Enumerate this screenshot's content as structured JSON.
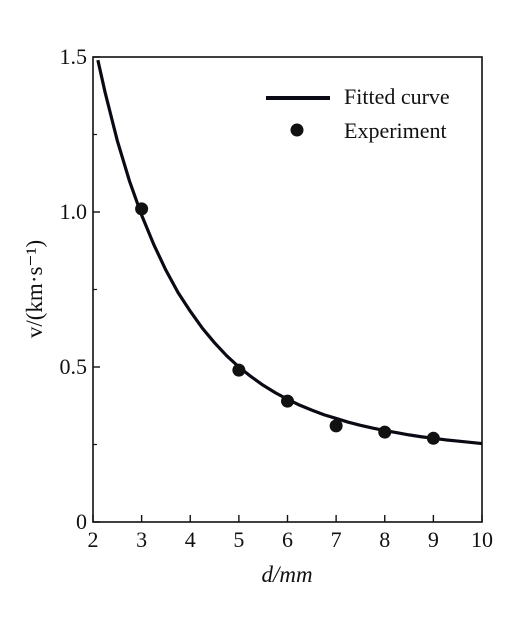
{
  "chart_data": {
    "type": "scatter",
    "xlabel": "d/mm",
    "ylabel": "v/(km·s⁻¹)",
    "xlim": [
      2,
      10
    ],
    "ylim": [
      0,
      1.5
    ],
    "x_ticks": [
      2,
      3,
      4,
      5,
      6,
      7,
      8,
      9,
      10
    ],
    "y_ticks": [
      0,
      0.5,
      1.0,
      1.5
    ],
    "x_tick_labels": [
      "2",
      "3",
      "4",
      "5",
      "6",
      "7",
      "8",
      "9",
      "10"
    ],
    "y_tick_labels": [
      "0",
      "0.5",
      "1.0",
      "1.5"
    ],
    "grid": false,
    "legend_position": "top-right",
    "series": [
      {
        "name": "Fitted curve",
        "type": "line",
        "color": "#0a0a14",
        "x": [
          2.1,
          2.25,
          2.5,
          2.75,
          3.0,
          3.25,
          3.5,
          3.75,
          4.0,
          4.25,
          4.5,
          4.75,
          5.0,
          5.25,
          5.5,
          5.75,
          6.0,
          6.25,
          6.5,
          6.75,
          7.0,
          7.25,
          7.5,
          7.75,
          8.0,
          8.25,
          8.5,
          8.75,
          9.0,
          9.25,
          9.5,
          9.75,
          10.0
        ],
        "y": [
          1.49,
          1.385,
          1.23,
          1.1,
          0.99,
          0.895,
          0.812,
          0.74,
          0.68,
          0.625,
          0.578,
          0.536,
          0.5,
          0.469,
          0.441,
          0.417,
          0.396,
          0.377,
          0.361,
          0.346,
          0.334,
          0.322,
          0.312,
          0.303,
          0.295,
          0.288,
          0.281,
          0.275,
          0.27,
          0.265,
          0.261,
          0.257,
          0.253
        ]
      },
      {
        "name": "Experiment",
        "type": "scatter",
        "color": "#111111",
        "x": [
          3,
          5,
          6,
          7,
          8,
          9
        ],
        "y": [
          1.01,
          0.49,
          0.39,
          0.31,
          0.29,
          0.27
        ]
      }
    ]
  }
}
